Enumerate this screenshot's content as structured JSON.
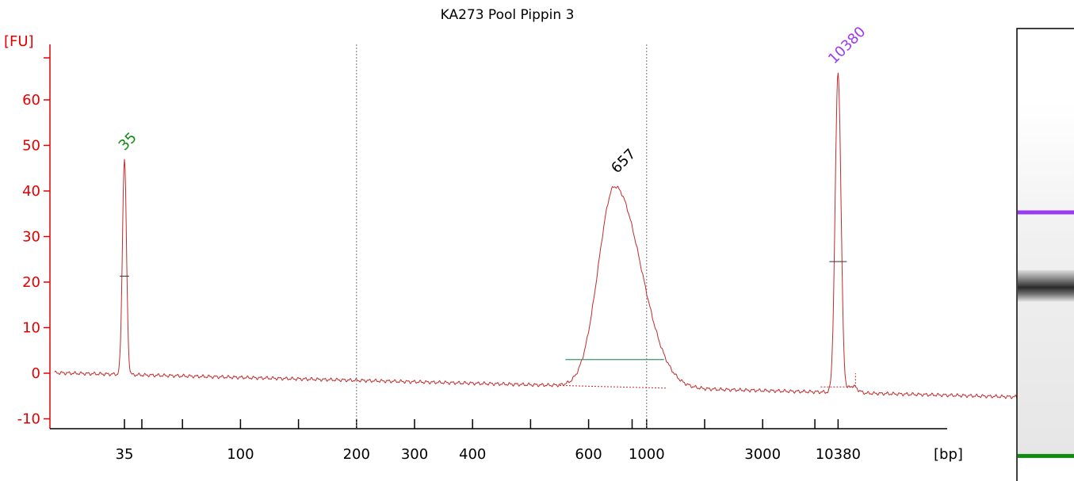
{
  "chart_data": {
    "type": "line",
    "title": "KA273 Pool Pippin 3",
    "ylabel": "[FU]",
    "xlabel": "[bp]",
    "ylim": [
      -12,
      72
    ],
    "yticks": [
      -10,
      0,
      10,
      20,
      30,
      40,
      50,
      60
    ],
    "xticks": [
      {
        "label": "35",
        "pos": 0
      },
      {
        "label": "100",
        "pos": 2
      },
      {
        "label": "200",
        "pos": 4
      },
      {
        "label": "300",
        "pos": 5
      },
      {
        "label": "400",
        "pos": 6
      },
      {
        "label": "600",
        "pos": 8
      },
      {
        "label": "1000",
        "pos": 9
      },
      {
        "label": "3000",
        "pos": 11
      },
      {
        "label": "10380",
        "pos": 12.3
      }
    ],
    "x_positions": [
      -1.2,
      0,
      0.3,
      1,
      2,
      3,
      3.2,
      4,
      5,
      6,
      7,
      7.6,
      8.1,
      8.45,
      8.55,
      8.75,
      9,
      9.1,
      9.4,
      10,
      11,
      12,
      12.2,
      12.3,
      12.45,
      12.6,
      13,
      14,
      15,
      16.3
    ],
    "peaks": [
      {
        "label": "35",
        "pos": 0,
        "fu": 47
      },
      {
        "label": "657",
        "pos": 8.45,
        "fu": 42
      },
      {
        "label": "10380",
        "pos": 12.3,
        "fu": 66
      }
    ],
    "vertical_grid_at": [
      4,
      9
    ],
    "region": {
      "from": 7.6,
      "to": 9.3,
      "fu": 3
    },
    "gel": {
      "bands": [
        {
          "name": "upper-marker",
          "color": "#9a3bf0",
          "position": 0.4
        },
        {
          "name": "sample",
          "color": "#333333",
          "position": 0.56
        },
        {
          "name": "lower-marker",
          "color": "#128a12",
          "position": 0.93
        }
      ]
    }
  }
}
